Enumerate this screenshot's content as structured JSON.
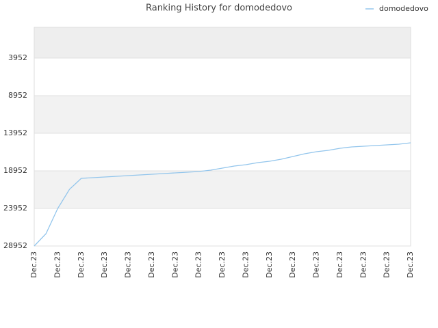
{
  "chart_data": {
    "type": "line",
    "title": "Ranking History for domodedovo",
    "categories": [
      "Dec.23",
      null,
      "Dec.23",
      null,
      "Dec.23",
      null,
      "Dec.23",
      null,
      "Dec.23",
      null,
      "Dec.23",
      null,
      "Dec.23",
      null,
      "Dec.23",
      null,
      "Dec.23",
      null,
      "Dec.23",
      null,
      "Dec.23",
      null,
      "Dec.23",
      null,
      "Dec.23",
      null,
      "Dec.23",
      null,
      "Dec.23",
      null,
      "Dec.23",
      null,
      "Dec.23"
    ],
    "series": [
      {
        "name": "domodedovo",
        "color": "#92c5ec",
        "values": [
          28952,
          27316,
          23952,
          21407,
          19952,
          19861,
          19770,
          19679,
          19588,
          19497,
          19406,
          19315,
          19225,
          19134,
          19043,
          18861,
          18588,
          18315,
          18134,
          17861,
          17679,
          17406,
          17043,
          16679,
          16406,
          16225,
          15952,
          15770,
          15679,
          15588,
          15497,
          15406,
          15225
        ]
      }
    ],
    "ylim": [
      -139,
      28952
    ],
    "y_inverted": true,
    "yticks": [
      3952,
      8952,
      13952,
      18952,
      23952,
      28952
    ],
    "grid": true
  }
}
